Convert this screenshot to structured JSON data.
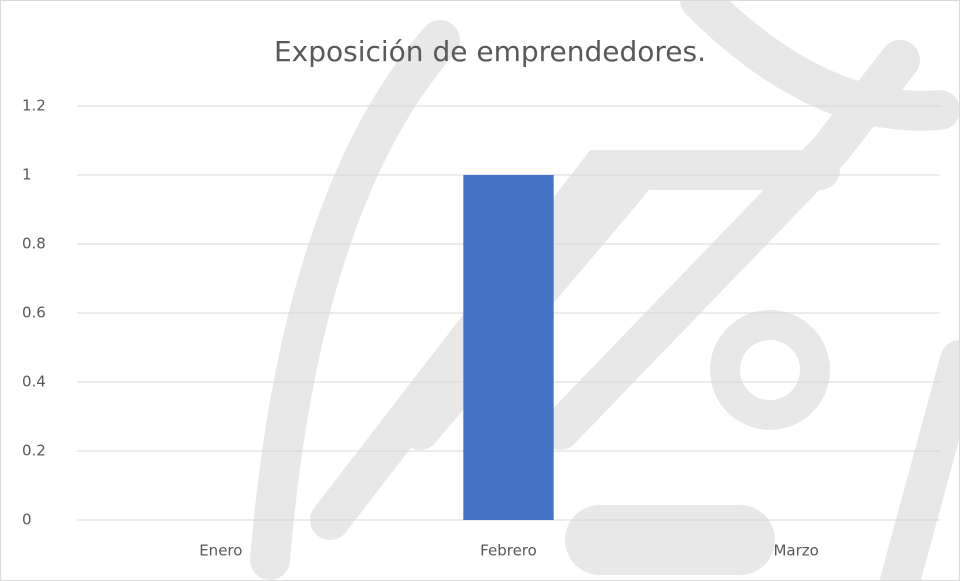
{
  "chart_data": {
    "type": "bar",
    "title": "Exposición de emprendedores.",
    "categories": [
      "Enero",
      "Febrero",
      "Marzo"
    ],
    "values": [
      0,
      1,
      0
    ],
    "color": "#4472c4",
    "ylim": [
      0,
      1.2
    ],
    "yticks": [
      0,
      0.2,
      0.4,
      0.6,
      0.8,
      1,
      1.2
    ],
    "grid": true
  }
}
